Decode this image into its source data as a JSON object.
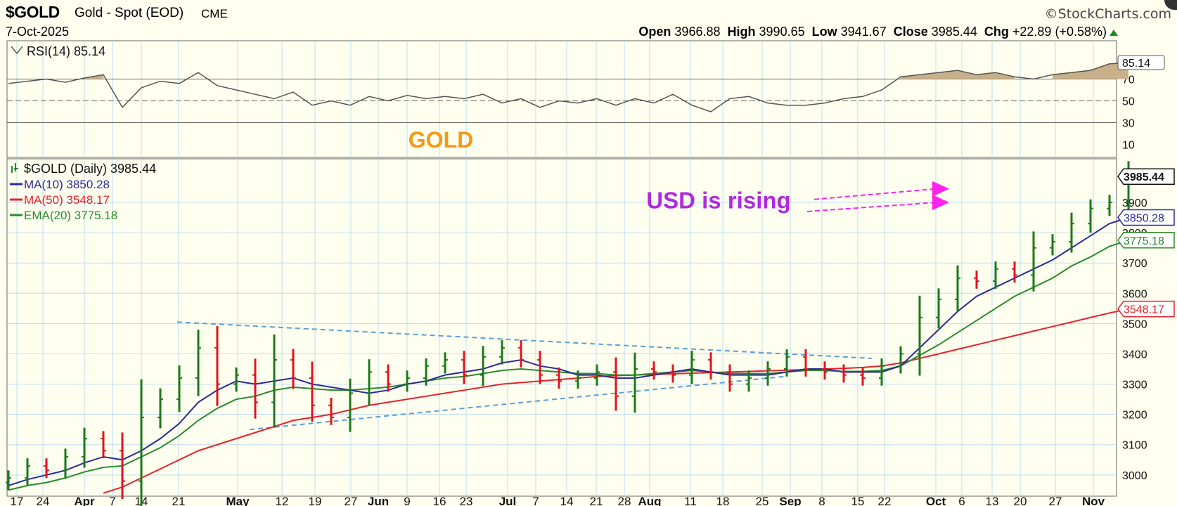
{
  "header": {
    "symbol": "$GOLD",
    "description": "Gold - Spot (EOD)",
    "exchange": "CME",
    "brand": "©StockCharts.com",
    "date": "7-Oct-2025",
    "open_label": "Open",
    "open": "3966.88",
    "high_label": "High",
    "high": "3990.65",
    "low_label": "Low",
    "low": "3941.67",
    "close_label": "Close",
    "close": "3985.44",
    "chg_label": "Chg",
    "chg": "+22.89 (+0.58%)"
  },
  "colors": {
    "background": "#fffff0",
    "grid": "#bfdcec",
    "up_bar": "#1a7a1a",
    "down_bar": "#e0141e",
    "ma10": "#2a2a9a",
    "ma50": "#e8202a",
    "ema20": "#2a8a2a",
    "rsi_line": "#555555",
    "rsi_fill": "#c8b08a",
    "trendline": "#5b9fd6",
    "annotation_purple": "#b02adf",
    "annotation_arrow": "#ff22ee",
    "gold_label": "#f59a16"
  },
  "chart_data": [
    {
      "type": "line",
      "panel": "RSI",
      "title": "RSI(14) 85.14",
      "current": 85.14,
      "ylim": [
        0,
        100
      ],
      "y_ticks": [
        10,
        30,
        50,
        70
      ],
      "reference_lines": [
        30,
        50,
        70
      ],
      "x": [
        "Mar 17",
        "Mar 20",
        "Mar 24",
        "Mar 27",
        "Mar 31",
        "Apr 3",
        "Apr 7",
        "Apr 10",
        "Apr 14",
        "Apr 17",
        "Apr 21",
        "Apr 24",
        "Apr 28",
        "May 1",
        "May 5",
        "May 8",
        "May 12",
        "May 15",
        "May 19",
        "May 22",
        "May 27",
        "May 30",
        "Jun 2",
        "Jun 5",
        "Jun 9",
        "Jun 12",
        "Jun 16",
        "Jun 19",
        "Jun 23",
        "Jun 26",
        "Jun 30",
        "Jul 3",
        "Jul 7",
        "Jul 10",
        "Jul 14",
        "Jul 17",
        "Jul 21",
        "Jul 24",
        "Jul 28",
        "Jul 31",
        "Aug 4",
        "Aug 7",
        "Aug 11",
        "Aug 14",
        "Aug 18",
        "Aug 21",
        "Aug 25",
        "Aug 28",
        "Sep 2",
        "Sep 5",
        "Sep 8",
        "Sep 11",
        "Sep 15",
        "Sep 18",
        "Sep 22",
        "Sep 25",
        "Sep 29",
        "Oct 2",
        "Oct 6",
        "Oct 7"
      ],
      "values": [
        66,
        68,
        70,
        67,
        71,
        74,
        44,
        62,
        68,
        66,
        76,
        64,
        60,
        56,
        52,
        58,
        46,
        50,
        46,
        54,
        50,
        55,
        52,
        54,
        52,
        56,
        48,
        52,
        44,
        50,
        48,
        52,
        46,
        52,
        48,
        56,
        46,
        40,
        52,
        54,
        48,
        46,
        46,
        48,
        52,
        54,
        60,
        72,
        74,
        76,
        78,
        74,
        76,
        72,
        70,
        74,
        76,
        78,
        84,
        85
      ]
    },
    {
      "type": "ohlc",
      "panel": "price",
      "series_label": "$GOLD (Daily) 3985.44",
      "ylim": [
        2930,
        4030
      ],
      "y_ticks": [
        3000,
        3100,
        3200,
        3300,
        3400,
        3500,
        3600,
        3700,
        3800,
        3900
      ],
      "x_tick_labels": [
        "17",
        "24",
        "Apr",
        "7",
        "14",
        "21",
        "May",
        "12",
        "19",
        "27",
        "Jun",
        "9",
        "16",
        "23",
        "Jul",
        "7",
        "14",
        "21",
        "28",
        "Aug",
        "11",
        "18",
        "25",
        "Sep",
        "8",
        "15",
        "22",
        "Oct",
        "6",
        "13",
        "20",
        "27",
        "Nov"
      ],
      "x": [
        "Mar 17",
        "Mar 20",
        "Mar 24",
        "Mar 27",
        "Mar 31",
        "Apr 3",
        "Apr 7",
        "Apr 10",
        "Apr 14",
        "Apr 17",
        "Apr 21",
        "Apr 24",
        "Apr 28",
        "May 1",
        "May 5",
        "May 8",
        "May 12",
        "May 15",
        "May 19",
        "May 22",
        "May 27",
        "May 30",
        "Jun 2",
        "Jun 5",
        "Jun 9",
        "Jun 12",
        "Jun 16",
        "Jun 19",
        "Jun 23",
        "Jun 26",
        "Jun 30",
        "Jul 3",
        "Jul 7",
        "Jul 10",
        "Jul 14",
        "Jul 17",
        "Jul 21",
        "Jul 24",
        "Jul 28",
        "Jul 31",
        "Aug 4",
        "Aug 7",
        "Aug 11",
        "Aug 14",
        "Aug 18",
        "Aug 21",
        "Aug 25",
        "Aug 28",
        "Sep 2",
        "Sep 5",
        "Sep 8",
        "Sep 11",
        "Sep 15",
        "Sep 18",
        "Sep 22",
        "Sep 25",
        "Sep 29",
        "Oct 2",
        "Oct 6",
        "Oct 7"
      ],
      "close": [
        2990,
        3030,
        3015,
        3060,
        3120,
        3080,
        2980,
        3190,
        3250,
        3320,
        3420,
        3300,
        3330,
        3240,
        3380,
        3320,
        3230,
        3190,
        3270,
        3340,
        3300,
        3320,
        3360,
        3380,
        3330,
        3390,
        3420,
        3380,
        3330,
        3310,
        3320,
        3340,
        3260,
        3350,
        3340,
        3330,
        3380,
        3340,
        3300,
        3320,
        3350,
        3390,
        3350,
        3340,
        3330,
        3320,
        3360,
        3400,
        3520,
        3580,
        3650,
        3640,
        3680,
        3660,
        3750,
        3770,
        3830,
        3880,
        3900,
        3985
      ],
      "ma10": [
        2965,
        2985,
        3000,
        3015,
        3040,
        3060,
        3050,
        3080,
        3120,
        3170,
        3240,
        3280,
        3310,
        3300,
        3310,
        3320,
        3300,
        3290,
        3280,
        3270,
        3280,
        3300,
        3310,
        3330,
        3340,
        3350,
        3370,
        3380,
        3360,
        3350,
        3330,
        3330,
        3320,
        3320,
        3330,
        3340,
        3350,
        3340,
        3330,
        3330,
        3330,
        3340,
        3350,
        3350,
        3340,
        3340,
        3340,
        3360,
        3420,
        3480,
        3540,
        3590,
        3620,
        3650,
        3680,
        3710,
        3750,
        3790,
        3830,
        3850
      ],
      "ema20": [
        2950,
        2965,
        2975,
        2990,
        3010,
        3025,
        3030,
        3060,
        3090,
        3130,
        3180,
        3220,
        3250,
        3260,
        3280,
        3290,
        3285,
        3280,
        3280,
        3285,
        3290,
        3300,
        3310,
        3320,
        3325,
        3335,
        3345,
        3350,
        3345,
        3340,
        3335,
        3335,
        3330,
        3330,
        3335,
        3340,
        3345,
        3340,
        3335,
        3335,
        3335,
        3340,
        3345,
        3345,
        3342,
        3342,
        3345,
        3360,
        3395,
        3430,
        3470,
        3510,
        3550,
        3590,
        3620,
        3650,
        3690,
        3720,
        3755,
        3775
      ],
      "ma50": [
        null,
        null,
        null,
        null,
        null,
        2940,
        2960,
        2990,
        3020,
        3050,
        3080,
        3100,
        3120,
        3140,
        3160,
        3180,
        3190,
        3200,
        3215,
        3230,
        3240,
        3250,
        3260,
        3270,
        3280,
        3290,
        3300,
        3305,
        3310,
        3315,
        3320,
        3325,
        3328,
        3330,
        3332,
        3334,
        3336,
        3338,
        3340,
        3342,
        3344,
        3346,
        3348,
        3350,
        3352,
        3355,
        3360,
        3370,
        3385,
        3400,
        3415,
        3430,
        3445,
        3460,
        3475,
        3490,
        3505,
        3520,
        3535,
        3548
      ],
      "legend": [
        {
          "name": "MA(10) 3850.28",
          "value": 3850.28
        },
        {
          "name": "MA(50) 3548.17",
          "value": 3548.17
        },
        {
          "name": "EMA(20) 3775.18",
          "value": 3775.18
        }
      ],
      "price_tags": [
        3985.44,
        3850.28,
        3775.18,
        3548.17
      ],
      "annotations": {
        "gold_label": "GOLD",
        "usd_label": "USD is rising"
      }
    }
  ]
}
